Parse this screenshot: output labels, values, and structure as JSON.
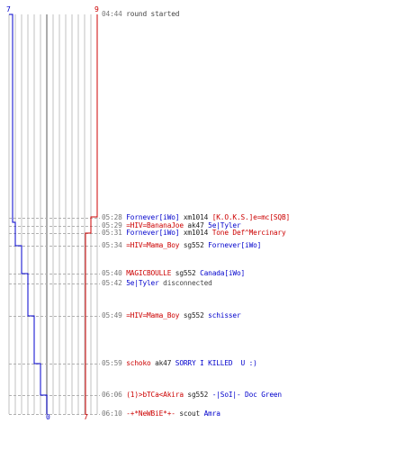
{
  "colors": {
    "blue": "#0000cc",
    "red": "#cc0000",
    "time": "#777777",
    "grid": "#c0c0c0",
    "center": "#888888",
    "text": "#222222"
  },
  "score_labels": {
    "blue_top": "7",
    "red_top": "9",
    "blue_bottom": "0",
    "red_bottom": "7"
  },
  "events": [
    {
      "time": "04:44",
      "parts": [
        {
          "text": "round started",
          "role": "plain"
        }
      ]
    },
    {
      "time": "05:28",
      "parts": [
        {
          "text": "Fornever[iWo]",
          "role": "blue"
        },
        {
          "text": " xm1014 ",
          "role": "weapon"
        },
        {
          "text": "[K.O.K.S.]e=mc[SQB]",
          "role": "red"
        }
      ]
    },
    {
      "time": "05:29",
      "parts": [
        {
          "text": "=HIV=BananaJoe",
          "role": "red"
        },
        {
          "text": " ak47 ",
          "role": "weapon"
        },
        {
          "text": "5e|Tyler",
          "role": "blue"
        }
      ]
    },
    {
      "time": "05:31",
      "parts": [
        {
          "text": "Fornever[iWo]",
          "role": "blue"
        },
        {
          "text": " xm1014 ",
          "role": "weapon"
        },
        {
          "text": "Tone Def^Mercinary",
          "role": "red"
        }
      ]
    },
    {
      "time": "05:34",
      "parts": [
        {
          "text": "=HIV=Mama_Boy",
          "role": "red"
        },
        {
          "text": " sg552 ",
          "role": "weapon"
        },
        {
          "text": "Fornever[iWo]",
          "role": "blue"
        }
      ]
    },
    {
      "time": "05:40",
      "parts": [
        {
          "text": "MAGICBOULLE",
          "role": "red"
        },
        {
          "text": " sg552 ",
          "role": "weapon"
        },
        {
          "text": "Canada[iWo]",
          "role": "blue"
        }
      ]
    },
    {
      "time": "05:42",
      "parts": [
        {
          "text": "5e|Tyler",
          "role": "blue"
        },
        {
          "text": " disconnected",
          "role": "plain"
        }
      ]
    },
    {
      "time": "05:49",
      "parts": [
        {
          "text": "=HIV=Mama_Boy",
          "role": "red"
        },
        {
          "text": " sg552 ",
          "role": "weapon"
        },
        {
          "text": "schisser",
          "role": "blue"
        }
      ]
    },
    {
      "time": "05:59",
      "parts": [
        {
          "text": "schoko",
          "role": "red"
        },
        {
          "text": " ak47 ",
          "role": "weapon"
        },
        {
          "text": "SORRY I KILLED  U :)",
          "role": "blue"
        }
      ]
    },
    {
      "time": "06:06",
      "parts": [
        {
          "text": "(1)>bTCa<Akira",
          "role": "red"
        },
        {
          "text": " sg552 ",
          "role": "weapon"
        },
        {
          "text": "-|SoI|- Doc Green",
          "role": "blue"
        }
      ]
    },
    {
      "time": "06:10",
      "parts": [
        {
          "text": "-+*NeWBiE*+-",
          "role": "red"
        },
        {
          "text": " scout ",
          "role": "weapon"
        },
        {
          "text": "Amra",
          "role": "blue"
        }
      ]
    }
  ]
}
